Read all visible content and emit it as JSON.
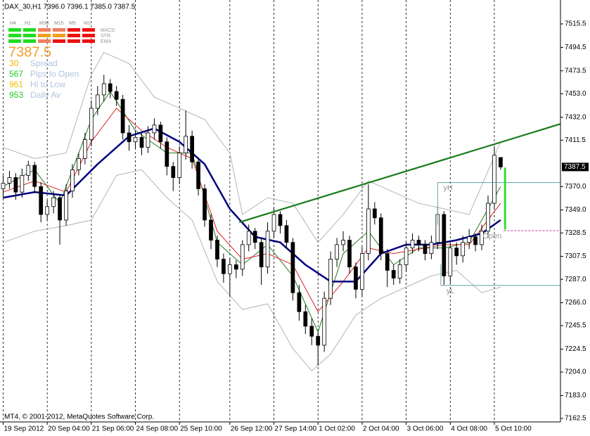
{
  "header": "DAX_30,H1  7396.0 7396.1 7385.0 7387.5",
  "footer": "MT4, © 2001-2012, MetaQuotes Software Corp.",
  "panel": {
    "timeframes": [
      "H4",
      "H1",
      "M30",
      "M15",
      "M5",
      "M1"
    ],
    "indicators": [
      "MACD",
      "STR",
      "EMA"
    ],
    "signals": [
      [
        "#22dd22",
        "#22dd22",
        "#f08060",
        "#f08060",
        "#ee1111",
        "#ee1111"
      ],
      [
        "#22dd22",
        "#22dd22",
        "#f0a020",
        "#f0a020",
        "#ee1111",
        "#ee1111"
      ],
      [
        "#22dd22",
        "#22dd22",
        "#f08060",
        "#ee1111",
        "#ee1111",
        "#ee1111"
      ]
    ],
    "price": "7387.5",
    "stats": [
      {
        "value": "30",
        "label": "Spread",
        "color": "#f0b000"
      },
      {
        "value": "567",
        "label": "Pips to Open",
        "color": "#22cc22"
      },
      {
        "value": "961",
        "label": "Hi to Low",
        "color": "#e8c000"
      },
      {
        "value": "953",
        "label": "Daily Av",
        "color": "#22cc22"
      }
    ]
  },
  "chart_data": {
    "type": "candlestick",
    "xlim": [
      -0.5,
      88.5
    ],
    "ylim": [
      7162.5,
      7515.5
    ],
    "grid": true,
    "up_color": "#ffffff",
    "down_color": "#000000",
    "yticks": [
      7162.5,
      {
        "value": 7183,
        "label": "7183.0"
      },
      {
        "value": 7204,
        "label": "7204.0"
      },
      7224.5,
      7245.5,
      {
        "value": 7266,
        "label": "7266.0"
      },
      {
        "value": 7287,
        "label": "7287.0"
      },
      7307.5,
      7328.5,
      {
        "value": 7349,
        "label": "7349.0"
      },
      {
        "value": 7370,
        "label": "7370.0"
      },
      7411.5,
      {
        "value": 7432,
        "label": "7432.0"
      },
      {
        "value": 7453,
        "label": "7453.0"
      },
      7473.5,
      7494.5,
      7515.5
    ],
    "xticks": [
      {
        "value": 0,
        "label": "19 Sep 2012"
      },
      {
        "value": 7,
        "label": "20 Sep 04:00"
      },
      {
        "value": 14,
        "label": "21 Sep 06:00"
      },
      {
        "value": 21,
        "label": "24 Sep 08:00"
      },
      {
        "value": 28,
        "label": "25 Sep 10:00"
      },
      {
        "value": 36,
        "label": "26 Sep 12:00"
      },
      {
        "value": 43,
        "label": "27 Sep 14:00"
      },
      {
        "value": 50,
        "label": "1 Oct 02:00"
      },
      {
        "value": 57,
        "label": "2 Oct 04:00"
      },
      {
        "value": 64,
        "label": "3 Oct 06:00"
      },
      {
        "value": 71,
        "label": "4 Oct 08:00"
      },
      {
        "value": 78,
        "label": "5 Oct 10:00"
      }
    ],
    "open": [
      7368,
      7373,
      7378,
      7365,
      7380,
      7389,
      7370,
      7345,
      7352,
      7360,
      7340,
      7366,
      7385,
      7395,
      7412,
      7440,
      7452,
      7462,
      7455,
      7448,
      7418,
      7410,
      7414,
      7405,
      7418,
      7425,
      7410,
      7388,
      7378,
      7400,
      7415,
      7392,
      7368,
      7340,
      7322,
      7305,
      7292,
      7300,
      7296,
      7318,
      7330,
      7320,
      7298,
      7330,
      7345,
      7335,
      7320,
      7275,
      7258,
      7245,
      7236,
      7228,
      7270,
      7305,
      7318,
      7322,
      7298,
      7278,
      7310,
      7350,
      7342,
      7310,
      7295,
      7288,
      7300,
      7315,
      7322,
      7318,
      7310,
      7320,
      7345,
      7290,
      7315,
      7308,
      7320,
      7325,
      7318,
      7330,
      7355,
      7396
    ],
    "high": [
      7380,
      7384,
      7382,
      7386,
      7393,
      7392,
      7374,
      7358,
      7366,
      7363,
      7372,
      7390,
      7400,
      7418,
      7447,
      7460,
      7470,
      7466,
      7460,
      7452,
      7425,
      7420,
      7418,
      7424,
      7431,
      7428,
      7414,
      7392,
      7406,
      7438,
      7420,
      7396,
      7372,
      7345,
      7326,
      7310,
      7306,
      7304,
      7322,
      7336,
      7333,
      7324,
      7338,
      7350,
      7348,
      7340,
      7324,
      7282,
      7264,
      7252,
      7240,
      7276,
      7312,
      7324,
      7330,
      7326,
      7302,
      7316,
      7372,
      7356,
      7346,
      7314,
      7300,
      7305,
      7320,
      7328,
      7326,
      7322,
      7326,
      7352,
      7348,
      7320,
      7320,
      7326,
      7332,
      7328,
      7336,
      7362,
      7406,
      7396.1
    ],
    "low": [
      7360,
      7368,
      7358,
      7360,
      7375,
      7364,
      7338,
      7340,
      7346,
      7318,
      7335,
      7360,
      7380,
      7390,
      7406,
      7434,
      7446,
      7449,
      7442,
      7412,
      7402,
      7404,
      7398,
      7400,
      7412,
      7404,
      7380,
      7366,
      7372,
      7394,
      7386,
      7362,
      7334,
      7314,
      7298,
      7284,
      7272,
      7288,
      7290,
      7312,
      7314,
      7282,
      7292,
      7324,
      7328,
      7314,
      7268,
      7250,
      7238,
      7228,
      7210,
      7222,
      7264,
      7298,
      7312,
      7292,
      7270,
      7272,
      7304,
      7336,
      7304,
      7280,
      7282,
      7283,
      7294,
      7310,
      7312,
      7304,
      7305,
      7314,
      7282,
      7284,
      7300,
      7302,
      7314,
      7312,
      7313,
      7324,
      7349,
      7385
    ],
    "close": [
      7373,
      7378,
      7365,
      7380,
      7389,
      7370,
      7345,
      7352,
      7360,
      7340,
      7366,
      7385,
      7395,
      7412,
      7440,
      7452,
      7462,
      7455,
      7448,
      7418,
      7410,
      7414,
      7405,
      7418,
      7425,
      7410,
      7388,
      7378,
      7400,
      7415,
      7392,
      7368,
      7340,
      7322,
      7305,
      7292,
      7300,
      7296,
      7318,
      7330,
      7320,
      7298,
      7330,
      7345,
      7335,
      7320,
      7275,
      7258,
      7245,
      7236,
      7228,
      7270,
      7305,
      7318,
      7322,
      7298,
      7278,
      7310,
      7350,
      7342,
      7310,
      7295,
      7288,
      7300,
      7315,
      7322,
      7318,
      7310,
      7320,
      7345,
      7290,
      7315,
      7308,
      7320,
      7325,
      7318,
      7330,
      7355,
      7398,
      7387.5
    ],
    "lines": [
      {
        "color": "#b4b4b4",
        "width": 1,
        "x": [
          0,
          5,
          10,
          14,
          16,
          20,
          24,
          28,
          32,
          36,
          38,
          42,
          46,
          50,
          54,
          58,
          62,
          66,
          70,
          74,
          79
        ],
        "values": [
          7405,
          7395,
          7400,
          7470,
          7490,
          7480,
          7450,
          7440,
          7430,
          7400,
          7345,
          7360,
          7355,
          7320,
          7345,
          7375,
          7365,
          7355,
          7350,
          7345,
          7410
        ]
      },
      {
        "color": "#b4b4b4",
        "width": 1,
        "x": [
          0,
          5,
          10,
          14,
          18,
          22,
          26,
          30,
          34,
          38,
          42,
          46,
          49,
          52,
          56,
          60,
          64,
          68,
          72,
          76,
          79
        ],
        "values": [
          7320,
          7330,
          7335,
          7340,
          7380,
          7385,
          7360,
          7340,
          7285,
          7260,
          7265,
          7225,
          7205,
          7220,
          7255,
          7270,
          7280,
          7290,
          7295,
          7275,
          7280
        ]
      },
      {
        "color": "#1f7a1f",
        "width": 1,
        "x": [
          0,
          5,
          9,
          14,
          17,
          21,
          26,
          30,
          34,
          38,
          42,
          46,
          50,
          54,
          58,
          62,
          66,
          70,
          74,
          79
        ],
        "values": [
          7370,
          7385,
          7355,
          7430,
          7455,
          7420,
          7400,
          7400,
          7320,
          7300,
          7318,
          7290,
          7240,
          7310,
          7330,
          7300,
          7315,
          7315,
          7320,
          7370
        ]
      },
      {
        "color": "#dd2222",
        "width": 1,
        "x": [
          0,
          5,
          10,
          14,
          18,
          22,
          26,
          30,
          34,
          38,
          42,
          46,
          50,
          54,
          58,
          62,
          66,
          70,
          74,
          79
        ],
        "values": [
          7365,
          7375,
          7365,
          7410,
          7440,
          7420,
          7405,
          7395,
          7330,
          7305,
          7310,
          7300,
          7258,
          7285,
          7315,
          7310,
          7314,
          7318,
          7318,
          7355
        ]
      },
      {
        "color": "#000080",
        "width": 2.5,
        "x": [
          0,
          5,
          10,
          15,
          20,
          24,
          28,
          32,
          36,
          40,
          44,
          48,
          52,
          56,
          60,
          64,
          68,
          72,
          76,
          79
        ],
        "values": [
          7360,
          7365,
          7362,
          7390,
          7415,
          7422,
          7410,
          7390,
          7350,
          7325,
          7320,
          7300,
          7285,
          7285,
          7310,
          7318,
          7318,
          7322,
          7328,
          7340
        ]
      }
    ],
    "trendline": {
      "color": "#1a7a1a",
      "x": [
        37.5,
        88.5
      ],
      "values": [
        7338,
        7426
      ]
    },
    "levels": [
      {
        "name": "yH",
        "value": 7373.5,
        "x": 69,
        "color": "#5f9ea0"
      },
      {
        "name": "yL",
        "value": 7281.5,
        "x": 69.5,
        "color": "#5f9ea0"
      },
      {
        "name": "Open",
        "value": 7330.5,
        "x": 79.5,
        "color": "#cc3399"
      }
    ],
    "range_bar": {
      "color": "#33dd33",
      "x": 79.7,
      "values": [
        7387,
        7331.5
      ]
    }
  }
}
